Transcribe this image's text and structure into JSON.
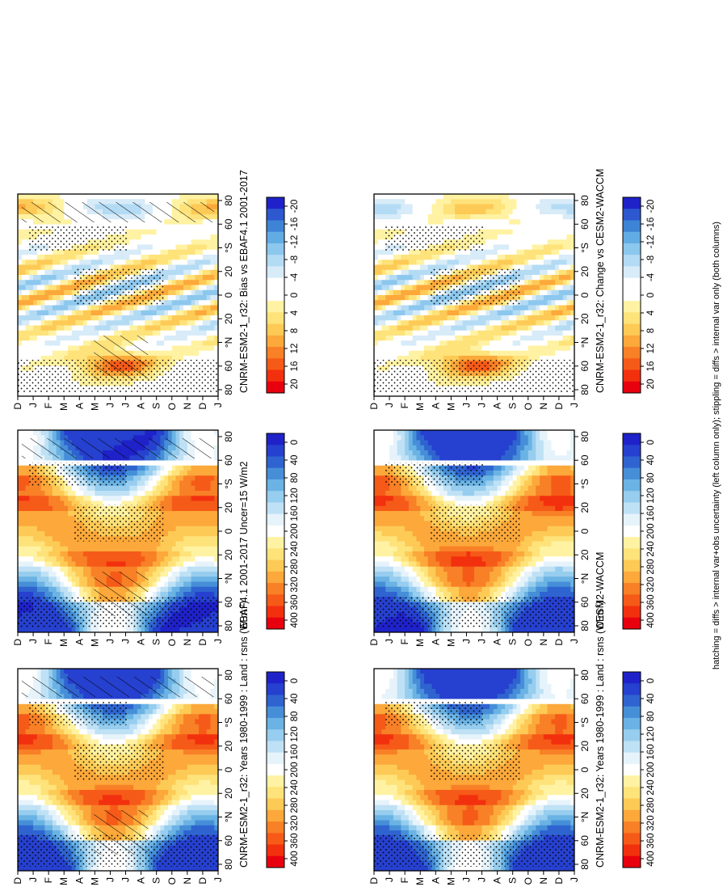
{
  "figure": {
    "footnote": "hatching = diffs > internal var+obs uncertainty (left column only); stippling = diffs > internal var only (both columns)"
  },
  "colors": {
    "field_scale": [
      "#e8000e",
      "#f2300e",
      "#f65a18",
      "#f88026",
      "#fca83a",
      "#fdca56",
      "#fee27a",
      "#fff2a2",
      "#ffffff",
      "#e6f3fb",
      "#bfe1f5",
      "#97cdee",
      "#6ab3e4",
      "#468fd8",
      "#2f64d0",
      "#2640cf",
      "#1f22c9"
    ],
    "diff_scale": [
      "#e8000e",
      "#f2300e",
      "#f65a18",
      "#f88026",
      "#fca83a",
      "#fdca56",
      "#fee27a",
      "#fff2a2",
      "#ffffff",
      "#ffffff",
      "#d7ebf8",
      "#b4dbf4",
      "#8cc7ee",
      "#62ace4",
      "#3e84d6",
      "#2d58cf",
      "#1f22c9"
    ]
  },
  "chart_data": [
    {
      "type": "heatmap",
      "title": "CNRM-ESM2-1_r32: Years 1980-1999 : Land : rsns (W m",
      "title_sup": "-2",
      "title_end": ")",
      "x_months": [
        "D",
        "J",
        "F",
        "M",
        "A",
        "M",
        "J",
        "J",
        "A",
        "S",
        "O",
        "N",
        "D",
        "J"
      ],
      "y_ticks": [
        "80",
        "60",
        "°N",
        "20",
        "0",
        "20",
        "°S",
        "60",
        "80"
      ],
      "colorbar": [
        "400",
        "360",
        "320",
        "280",
        "240",
        "200",
        "160",
        "120",
        "80",
        "40",
        "0"
      ],
      "scale": "field",
      "zlim": [
        0,
        400
      ],
      "field_model": "model_field",
      "hatched": true
    },
    {
      "type": "heatmap",
      "title": "EBAF4.1 2001-2017 Uncer=15 W/m2",
      "x_months": [
        "D",
        "J",
        "F",
        "M",
        "A",
        "M",
        "J",
        "J",
        "A",
        "S",
        "O",
        "N",
        "D",
        "J"
      ],
      "y_ticks": [
        "80",
        "60",
        "°N",
        "20",
        "0",
        "20",
        "°S",
        "60",
        "80"
      ],
      "colorbar": [
        "400",
        "360",
        "320",
        "280",
        "240",
        "200",
        "160",
        "120",
        "80",
        "40",
        "0"
      ],
      "scale": "field",
      "zlim": [
        0,
        400
      ],
      "field_model": "obs_field",
      "hatched": true
    },
    {
      "type": "heatmap",
      "title": "CNRM-ESM2-1_r32: Bias vs EBAF4.1 2001-2017",
      "x_months": [
        "D",
        "J",
        "F",
        "M",
        "A",
        "M",
        "J",
        "J",
        "A",
        "S",
        "O",
        "N",
        "D",
        "J"
      ],
      "y_ticks": [
        "80",
        "60",
        "°N",
        "20",
        "0",
        "20",
        "°S",
        "60",
        "80"
      ],
      "colorbar": [
        "20",
        "16",
        "12",
        "8",
        "4",
        "0",
        "-4",
        "-8",
        "-12",
        "-16",
        "-20"
      ],
      "scale": "diff",
      "zlim": [
        -22,
        22
      ],
      "field_model": "bias",
      "hatched": true
    },
    {
      "type": "heatmap",
      "title": "CNRM-ESM2-1_r32: Years 1980-1999 : Land : rsns (W m",
      "title_sup": "-2",
      "title_end": ")",
      "x_months": [
        "D",
        "J",
        "F",
        "M",
        "A",
        "M",
        "J",
        "J",
        "A",
        "S",
        "O",
        "N",
        "D",
        "J"
      ],
      "y_ticks": [
        "80",
        "60",
        "°N",
        "20",
        "0",
        "20",
        "°S",
        "60",
        "80"
      ],
      "colorbar": [
        "400",
        "360",
        "320",
        "280",
        "240",
        "200",
        "160",
        "120",
        "80",
        "40",
        "0"
      ],
      "scale": "field",
      "zlim": [
        0,
        400
      ],
      "field_model": "model_field",
      "hatched": false
    },
    {
      "type": "heatmap",
      "title": "CESM2-WACCM",
      "x_months": [
        "D",
        "J",
        "F",
        "M",
        "A",
        "M",
        "J",
        "J",
        "A",
        "S",
        "O",
        "N",
        "D",
        "J"
      ],
      "y_ticks": [
        "80",
        "60",
        "°N",
        "20",
        "0",
        "20",
        "°S",
        "60",
        "80"
      ],
      "colorbar": [
        "400",
        "360",
        "320",
        "280",
        "240",
        "200",
        "160",
        "120",
        "80",
        "40",
        "0"
      ],
      "scale": "field",
      "zlim": [
        0,
        400
      ],
      "field_model": "ref_field",
      "hatched": false
    },
    {
      "type": "heatmap",
      "title": "CNRM-ESM2-1_r32: Change vs CESM2-WACCM",
      "x_months": [
        "D",
        "J",
        "F",
        "M",
        "A",
        "M",
        "J",
        "J",
        "A",
        "S",
        "O",
        "N",
        "D",
        "J"
      ],
      "y_ticks": [
        "80",
        "60",
        "°N",
        "20",
        "0",
        "20",
        "°S",
        "60",
        "80"
      ],
      "colorbar": [
        "20",
        "16",
        "12",
        "8",
        "4",
        "0",
        "-4",
        "-8",
        "-12",
        "-16",
        "-20"
      ],
      "scale": "diff",
      "zlim": [
        -22,
        22
      ],
      "field_model": "change",
      "hatched": false
    }
  ]
}
